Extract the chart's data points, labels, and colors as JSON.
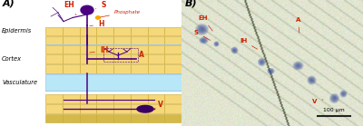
{
  "fig_width": 4.0,
  "fig_height": 1.39,
  "dpi": 100,
  "bg_color": "#ffffff",
  "panel_A_label": "A)",
  "panel_B_label": "B)",
  "cell_color_yellow": "#f5d87a",
  "cell_color_yellow2": "#d4b84a",
  "cell_border_color": "#c8a830",
  "vasculature_color": "#b8e8f8",
  "vasculature_border": "#a0c8e0",
  "purple": "#4a0080",
  "purple_dark": "#380060",
  "red_label": "#cc2200",
  "scale_bar_color": "#222222",
  "epidermis_text": "Epidermis",
  "cortex_text": "Cortex",
  "vasculature_text": "Vasculature",
  "phosphate_text": "Phosphate",
  "labels_A": [
    "S",
    "EH",
    "H",
    "IH",
    "A",
    "V"
  ],
  "labels_B": [
    "EH",
    "S",
    "IH",
    "A",
    "V"
  ],
  "scale_bar_text": "100 μm"
}
